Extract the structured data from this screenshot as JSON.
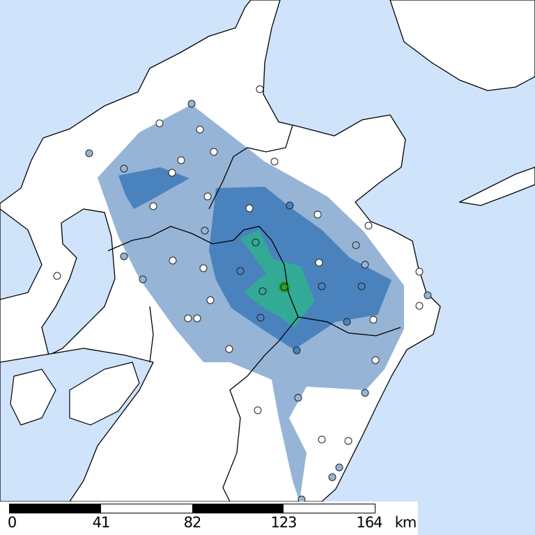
{
  "map": {
    "colors": {
      "sea": "#cfe3fb",
      "land": "#ffffff",
      "intensity_1": "#96b4d6",
      "intensity_2": "#4a82be",
      "intensity_3": "#32aa96",
      "intensity_4": "#28a028",
      "border": "#000000"
    }
  },
  "scale_bar": {
    "labels": [
      "0",
      "41",
      "82",
      "123",
      "164"
    ],
    "unit": "km"
  }
}
